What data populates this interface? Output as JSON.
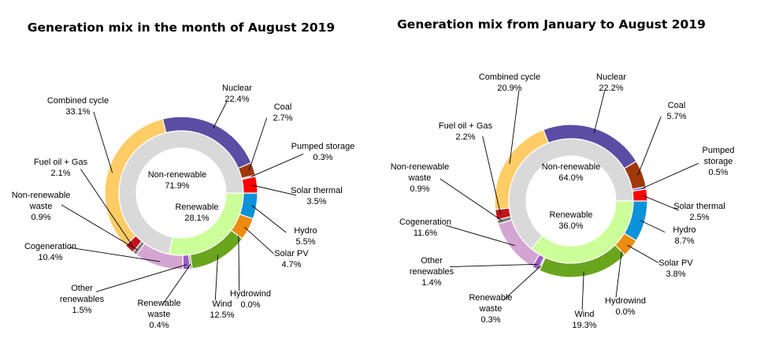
{
  "chart_data": [
    {
      "type": "pie",
      "variant": "double-donut",
      "title": "Generation mix in the month of August 2019",
      "inner_ring": [
        {
          "name": "Renewable",
          "value_label": "28.1%",
          "value": 28.1,
          "color": "#ccff99"
        },
        {
          "name": "Non-renewable",
          "value_label": "71.9%",
          "value": 71.9,
          "color": "#d9d9d9"
        }
      ],
      "outer_ring": [
        {
          "name": "Hydro",
          "value_label": "5.5%",
          "value": 5.5,
          "color": "#0b92d8"
        },
        {
          "name": "Solar PV",
          "value_label": "4.7%",
          "value": 4.7,
          "color": "#ef8b0b"
        },
        {
          "name": "Hydrowind",
          "value_label": "0.0%",
          "value": 0.0,
          "color": "#2f6fbd"
        },
        {
          "name": "Wind",
          "value_label": "12.5%",
          "value": 12.5,
          "color": "#6aa51e"
        },
        {
          "name": "Renewable waste",
          "value_label": "0.4%",
          "value": 0.4,
          "color": "#5f8f26"
        },
        {
          "name": "Other renewables",
          "value_label": "1.5%",
          "value": 1.5,
          "color": "#9a5cc6"
        },
        {
          "name": "Cogeneration",
          "value_label": "10.4%",
          "value": 10.4,
          "color": "#d4a5d3"
        },
        {
          "name": "Non-renewable waste",
          "value_label": "0.9%",
          "value": 0.9,
          "color": "#7f7f7f"
        },
        {
          "name": "Fuel oil + Gas",
          "value_label": "2.1%",
          "value": 2.1,
          "color": "#c0141c"
        },
        {
          "name": "Combined cycle",
          "value_label": "33.1%",
          "value": 33.1,
          "color": "#ffcc66"
        },
        {
          "name": "Nuclear",
          "value_label": "22.4%",
          "value": 22.4,
          "color": "#5b4da3"
        },
        {
          "name": "Coal",
          "value_label": "2.7%",
          "value": 2.7,
          "color": "#a0380a"
        },
        {
          "name": "Pumped storage",
          "value_label": "0.3%",
          "value": 0.3,
          "color": "#4b6cd4"
        },
        {
          "name": "Solar thermal",
          "value_label": "3.5%",
          "value": 3.5,
          "color": "#ff0000"
        }
      ]
    },
    {
      "type": "pie",
      "variant": "double-donut",
      "title": "Generation mix from January to August 2019",
      "inner_ring": [
        {
          "name": "Renewable",
          "value_label": "36.0%",
          "value": 36.0,
          "color": "#ccff99"
        },
        {
          "name": "Non-renewable",
          "value_label": "64.0%",
          "value": 64.0,
          "color": "#d9d9d9"
        }
      ],
      "outer_ring": [
        {
          "name": "Hydro",
          "value_label": "8.7%",
          "value": 8.7,
          "color": "#0b92d8"
        },
        {
          "name": "Solar PV",
          "value_label": "3.8%",
          "value": 3.8,
          "color": "#ef8b0b"
        },
        {
          "name": "Hydrowind",
          "value_label": "0.0%",
          "value": 0.0,
          "color": "#2f6fbd"
        },
        {
          "name": "Wind",
          "value_label": "19.3%",
          "value": 19.3,
          "color": "#6aa51e"
        },
        {
          "name": "Renewable waste",
          "value_label": "0.3%",
          "value": 0.3,
          "color": "#5f8f26"
        },
        {
          "name": "Other renewables",
          "value_label": "1.4%",
          "value": 1.4,
          "color": "#9a5cc6"
        },
        {
          "name": "Cogeneration",
          "value_label": "11.6%",
          "value": 11.6,
          "color": "#d4a5d3"
        },
        {
          "name": "Non-renewable waste",
          "value_label": "0.9%",
          "value": 0.9,
          "color": "#7f7f7f"
        },
        {
          "name": "Fuel oil + Gas",
          "value_label": "2.2%",
          "value": 2.2,
          "color": "#c0141c"
        },
        {
          "name": "Combined cycle",
          "value_label": "20.9%",
          "value": 20.9,
          "color": "#ffcc66"
        },
        {
          "name": "Nuclear",
          "value_label": "22.2%",
          "value": 22.2,
          "color": "#5b4da3"
        },
        {
          "name": "Coal",
          "value_label": "5.7%",
          "value": 5.7,
          "color": "#a0380a"
        },
        {
          "name": "Pumped storage",
          "value_label": "0.5%",
          "value": 0.5,
          "color": "#4b6cd4"
        },
        {
          "name": "Solar thermal",
          "value_label": "2.5%",
          "value": 2.5,
          "color": "#ff0000"
        }
      ]
    }
  ]
}
